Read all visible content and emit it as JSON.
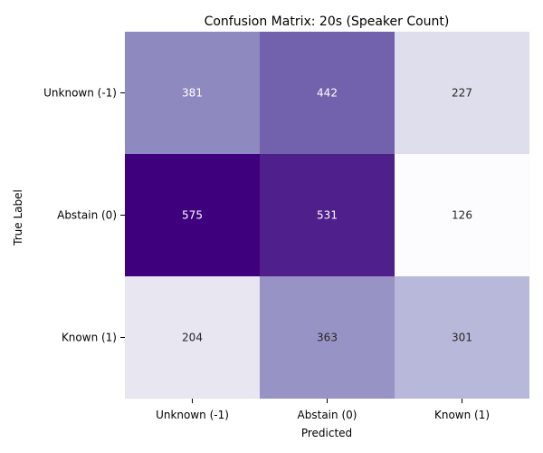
{
  "chart_data": {
    "type": "heatmap",
    "title": "Confusion Matrix: 20s (Speaker Count)",
    "xlabel": "Predicted",
    "ylabel": "True Label",
    "x_categories": [
      "Unknown (-1)",
      "Abstain (0)",
      "Known (1)"
    ],
    "y_categories": [
      "Unknown (-1)",
      "Abstain (0)",
      "Known (1)"
    ],
    "values": [
      [
        381,
        442,
        227
      ],
      [
        575,
        531,
        126
      ],
      [
        204,
        363,
        301
      ]
    ],
    "colormap": "Purples",
    "color_range": [
      126,
      575
    ],
    "colorbar": false,
    "grid": false
  }
}
